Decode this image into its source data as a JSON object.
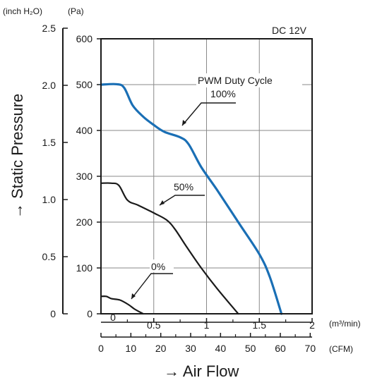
{
  "chart_data": {
    "type": "line",
    "condition": "DC 12V",
    "ylabel": "→ Static Pressure",
    "xlabel": "→ Air Flow",
    "y_left_unit": "(inch H₂O)",
    "y_pa_unit": "(Pa)",
    "x_m3_unit": "(m³/min)",
    "x_cfm_unit": "(CFM)",
    "ylim_pa": [
      0,
      600
    ],
    "xlim_m3": [
      0,
      2
    ],
    "grid": true,
    "y_pa_ticks": [
      "0",
      "100",
      "200",
      "300",
      "400",
      "500",
      "600"
    ],
    "y_inch_ticks": [
      "0",
      "0.5",
      "1.0",
      "1.5",
      "2.0",
      "2.5"
    ],
    "x_m3_ticks": [
      "0.5",
      "1",
      "1.5",
      "2"
    ],
    "x_cfm_ticks": [
      "0",
      "10",
      "20",
      "30",
      "40",
      "50",
      "60",
      "70"
    ],
    "legend_title": "PWM Duty Cycle",
    "series": [
      {
        "name": "100%",
        "color": "#1a6fb5",
        "points": [
          [
            0,
            500
          ],
          [
            0.15,
            501
          ],
          [
            0.22,
            493
          ],
          [
            0.3,
            455
          ],
          [
            0.4,
            430
          ],
          [
            0.5,
            412
          ],
          [
            0.6,
            397
          ],
          [
            0.75,
            385
          ],
          [
            0.83,
            370
          ],
          [
            0.95,
            320
          ],
          [
            1.1,
            270
          ],
          [
            1.3,
            200
          ],
          [
            1.5,
            130
          ],
          [
            1.6,
            80
          ],
          [
            1.71,
            0
          ]
        ]
      },
      {
        "name": "50%",
        "color": "#1a1a1a",
        "points": [
          [
            0,
            285
          ],
          [
            0.1,
            285
          ],
          [
            0.17,
            280
          ],
          [
            0.25,
            248
          ],
          [
            0.35,
            237
          ],
          [
            0.5,
            220
          ],
          [
            0.62,
            205
          ],
          [
            0.7,
            185
          ],
          [
            0.8,
            150
          ],
          [
            0.95,
            100
          ],
          [
            1.1,
            55
          ],
          [
            1.3,
            0
          ]
        ]
      },
      {
        "name": "0%",
        "color": "#1a1a1a",
        "points": [
          [
            0,
            38
          ],
          [
            0.05,
            38
          ],
          [
            0.1,
            33
          ],
          [
            0.18,
            30
          ],
          [
            0.26,
            20
          ],
          [
            0.32,
            10
          ],
          [
            0.4,
            0
          ]
        ]
      }
    ]
  }
}
